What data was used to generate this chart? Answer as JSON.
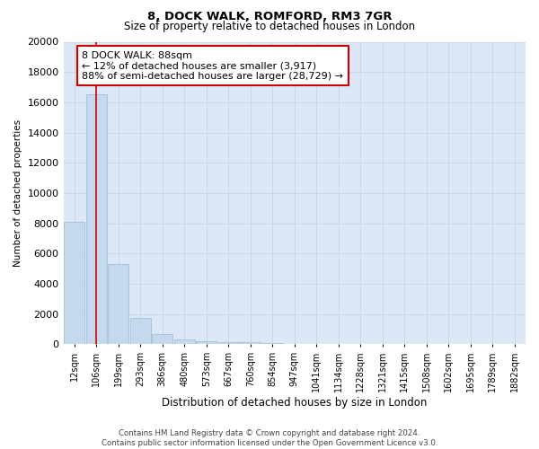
{
  "title1": "8, DOCK WALK, ROMFORD, RM3 7GR",
  "title2": "Size of property relative to detached houses in London",
  "xlabel": "Distribution of detached houses by size in London",
  "ylabel": "Number of detached properties",
  "categories": [
    "12sqm",
    "106sqm",
    "199sqm",
    "293sqm",
    "386sqm",
    "480sqm",
    "573sqm",
    "667sqm",
    "760sqm",
    "854sqm",
    "947sqm",
    "1041sqm",
    "1134sqm",
    "1228sqm",
    "1321sqm",
    "1415sqm",
    "1508sqm",
    "1602sqm",
    "1695sqm",
    "1789sqm",
    "1882sqm"
  ],
  "bar_heights": [
    8100,
    16500,
    5300,
    1750,
    700,
    320,
    200,
    160,
    130,
    100,
    0,
    0,
    0,
    0,
    0,
    0,
    0,
    0,
    0,
    0,
    0
  ],
  "bar_color": "#c5d9ed",
  "bar_edge_color": "#a0c0dd",
  "vline_color": "#cc0000",
  "vline_x": 1.0,
  "annotation_text": "8 DOCK WALK: 88sqm\n← 12% of detached houses are smaller (3,917)\n88% of semi-detached houses are larger (28,729) →",
  "annotation_box_color": "#ffffff",
  "annotation_box_edge": "#cc0000",
  "ylim": [
    0,
    20000
  ],
  "yticks": [
    0,
    2000,
    4000,
    6000,
    8000,
    10000,
    12000,
    14000,
    16000,
    18000,
    20000
  ],
  "grid_color": "#c8d8e8",
  "background_color": "#dce8f5",
  "footer_text": "Contains HM Land Registry data © Crown copyright and database right 2024.\nContains public sector information licensed under the Open Government Licence v3.0."
}
